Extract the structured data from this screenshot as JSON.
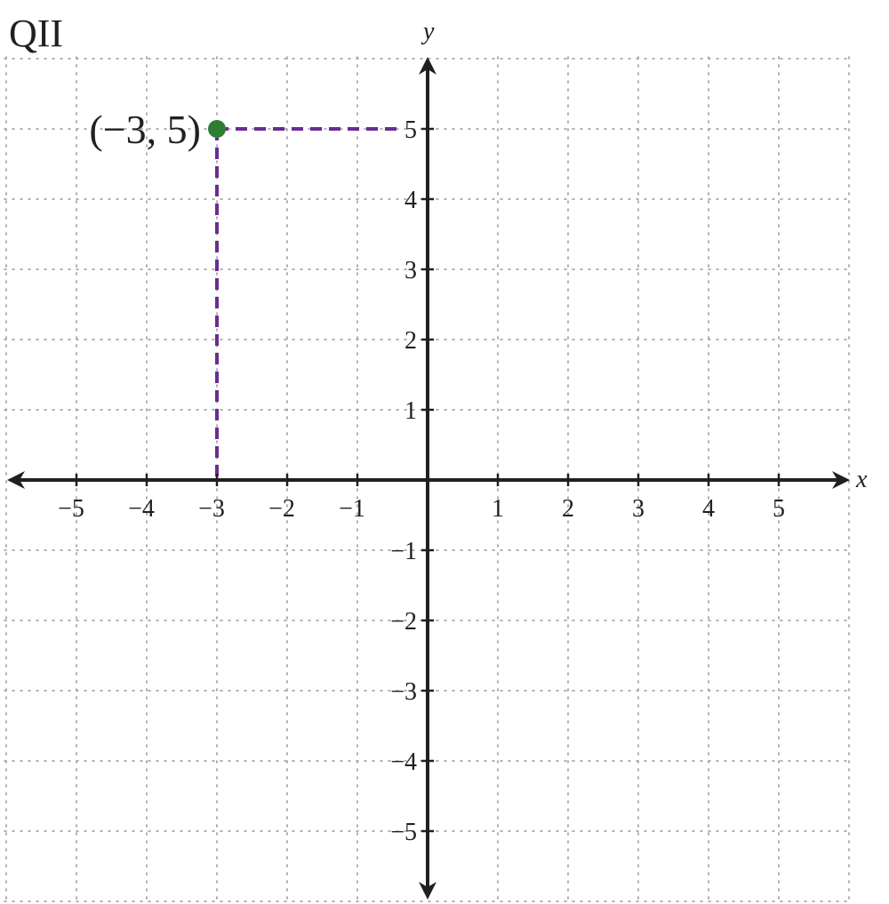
{
  "chart_data": {
    "type": "scatter",
    "title": "QII",
    "xlabel": "x",
    "ylabel": "y",
    "xlim": [
      -6,
      6
    ],
    "ylim": [
      -6,
      6
    ],
    "grid": true,
    "x_ticks": [
      {
        "value": -5,
        "label": "−5"
      },
      {
        "value": -4,
        "label": "−4"
      },
      {
        "value": -3,
        "label": "−3"
      },
      {
        "value": -2,
        "label": "−2"
      },
      {
        "value": -1,
        "label": "−1"
      },
      {
        "value": 1,
        "label": "1"
      },
      {
        "value": 2,
        "label": "2"
      },
      {
        "value": 3,
        "label": "3"
      },
      {
        "value": 4,
        "label": "4"
      },
      {
        "value": 5,
        "label": "5"
      }
    ],
    "y_ticks": [
      {
        "value": 5,
        "label": "5"
      },
      {
        "value": 4,
        "label": "4"
      },
      {
        "value": 3,
        "label": "3"
      },
      {
        "value": 2,
        "label": "2"
      },
      {
        "value": 1,
        "label": "1"
      },
      {
        "value": -1,
        "label": "−1"
      },
      {
        "value": -2,
        "label": "−2"
      },
      {
        "value": -3,
        "label": "−3"
      },
      {
        "value": -4,
        "label": "−4"
      },
      {
        "value": -5,
        "label": "−5"
      }
    ],
    "points": [
      {
        "x": -3,
        "y": 5,
        "label": "(−3, 5)"
      }
    ],
    "colors": {
      "point": "#2e7d32",
      "guide": "#6a2c91",
      "axis": "#231f20",
      "grid": "#9a9a9a"
    }
  }
}
